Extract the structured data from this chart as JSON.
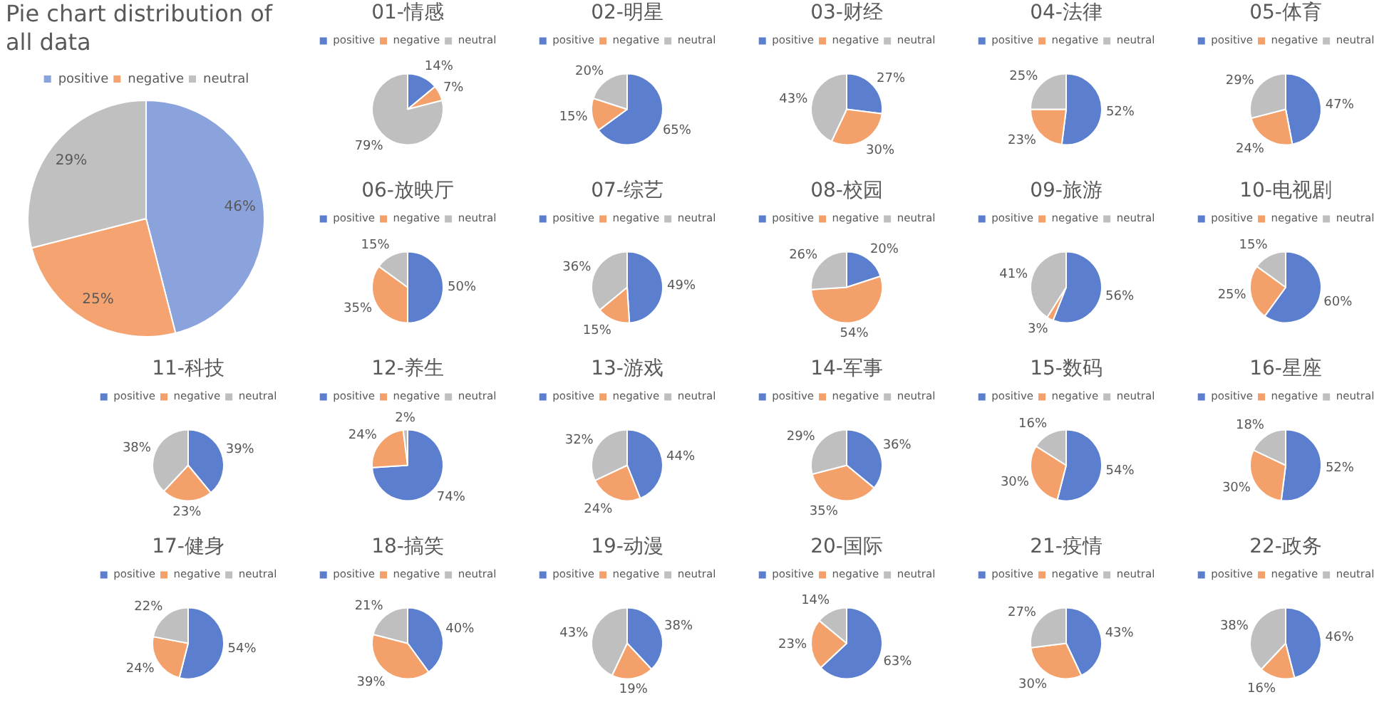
{
  "chart_data": [
    {
      "type": "pie",
      "title": "Pie chart distribution of all data",
      "categories": [
        "positive",
        "negative",
        "neutral"
      ],
      "values": [
        46,
        25,
        29
      ],
      "colors": [
        "#8aa3dd",
        "#f5a370",
        "#c0c0c0"
      ],
      "value_labels": [
        "46%",
        "25%",
        "29%"
      ],
      "legend": "top"
    },
    {
      "type": "pie",
      "title": "01-情感",
      "categories": [
        "positive",
        "negative",
        "neutral"
      ],
      "values": [
        14,
        7,
        79
      ],
      "colors": [
        "#5b7fce",
        "#f4a06b",
        "#bfbfbf"
      ],
      "value_labels": [
        "14%",
        "7%",
        "79%"
      ],
      "legend": "top"
    },
    {
      "type": "pie",
      "title": "02-明星",
      "categories": [
        "positive",
        "negative",
        "neutral"
      ],
      "values": [
        65,
        15,
        20
      ],
      "colors": [
        "#5b7fce",
        "#f4a06b",
        "#bfbfbf"
      ],
      "value_labels": [
        "65%",
        "15%",
        "20%"
      ],
      "legend": "top"
    },
    {
      "type": "pie",
      "title": "03-财经",
      "categories": [
        "positive",
        "negative",
        "neutral"
      ],
      "values": [
        27,
        30,
        43
      ],
      "colors": [
        "#5b7fce",
        "#f4a06b",
        "#bfbfbf"
      ],
      "value_labels": [
        "27%",
        "30%",
        "43%"
      ],
      "legend": "top"
    },
    {
      "type": "pie",
      "title": "04-法律",
      "categories": [
        "positive",
        "negative",
        "neutral"
      ],
      "values": [
        52,
        23,
        25
      ],
      "colors": [
        "#5b7fce",
        "#f4a06b",
        "#bfbfbf"
      ],
      "value_labels": [
        "52%",
        "23%",
        "25%"
      ],
      "legend": "top"
    },
    {
      "type": "pie",
      "title": "05-体育",
      "categories": [
        "positive",
        "negative",
        "neutral"
      ],
      "values": [
        47,
        24,
        29
      ],
      "colors": [
        "#5b7fce",
        "#f4a06b",
        "#bfbfbf"
      ],
      "value_labels": [
        "47%",
        "24%",
        "29%"
      ],
      "legend": "top"
    },
    {
      "type": "pie",
      "title": "06-放映厅",
      "categories": [
        "positive",
        "negative",
        "neutral"
      ],
      "values": [
        50,
        35,
        15
      ],
      "colors": [
        "#5b7fce",
        "#f4a06b",
        "#bfbfbf"
      ],
      "value_labels": [
        "50%",
        "35%",
        "15%"
      ],
      "legend": "top"
    },
    {
      "type": "pie",
      "title": "07-综艺",
      "categories": [
        "positive",
        "negative",
        "neutral"
      ],
      "values": [
        49,
        15,
        36
      ],
      "colors": [
        "#5b7fce",
        "#f4a06b",
        "#bfbfbf"
      ],
      "value_labels": [
        "49%",
        "15%",
        "36%"
      ],
      "legend": "top"
    },
    {
      "type": "pie",
      "title": "08-校园",
      "categories": [
        "positive",
        "negative",
        "neutral"
      ],
      "values": [
        20,
        54,
        26
      ],
      "colors": [
        "#5b7fce",
        "#f4a06b",
        "#bfbfbf"
      ],
      "value_labels": [
        "20%",
        "54%",
        "26%"
      ],
      "legend": "top"
    },
    {
      "type": "pie",
      "title": "09-旅游",
      "categories": [
        "positive",
        "negative",
        "neutral"
      ],
      "values": [
        56,
        3,
        41
      ],
      "colors": [
        "#5b7fce",
        "#f4a06b",
        "#bfbfbf"
      ],
      "value_labels": [
        "56%",
        "3%",
        "41%"
      ],
      "legend": "top"
    },
    {
      "type": "pie",
      "title": "10-电视剧",
      "categories": [
        "positive",
        "negative",
        "neutral"
      ],
      "values": [
        60,
        25,
        15
      ],
      "colors": [
        "#5b7fce",
        "#f4a06b",
        "#bfbfbf"
      ],
      "value_labels": [
        "60%",
        "25%",
        "15%"
      ],
      "legend": "top"
    },
    {
      "type": "pie",
      "title": "11-科技",
      "categories": [
        "positive",
        "negative",
        "neutral"
      ],
      "values": [
        39,
        23,
        38
      ],
      "colors": [
        "#5b7fce",
        "#f4a06b",
        "#bfbfbf"
      ],
      "value_labels": [
        "39%",
        "23%",
        "38%"
      ],
      "legend": "top"
    },
    {
      "type": "pie",
      "title": "12-养生",
      "categories": [
        "positive",
        "negative",
        "neutral"
      ],
      "values": [
        74,
        24,
        2
      ],
      "colors": [
        "#5b7fce",
        "#f4a06b",
        "#bfbfbf"
      ],
      "value_labels": [
        "74%",
        "24%",
        "2%"
      ],
      "legend": "top"
    },
    {
      "type": "pie",
      "title": "13-游戏",
      "categories": [
        "positive",
        "negative",
        "neutral"
      ],
      "values": [
        44,
        24,
        32
      ],
      "colors": [
        "#5b7fce",
        "#f4a06b",
        "#bfbfbf"
      ],
      "value_labels": [
        "44%",
        "24%",
        "32%"
      ],
      "legend": "top"
    },
    {
      "type": "pie",
      "title": "14-军事",
      "categories": [
        "positive",
        "negative",
        "neutral"
      ],
      "values": [
        36,
        35,
        29
      ],
      "colors": [
        "#5b7fce",
        "#f4a06b",
        "#bfbfbf"
      ],
      "value_labels": [
        "36%",
        "35%",
        "29%"
      ],
      "legend": "top"
    },
    {
      "type": "pie",
      "title": "15-数码",
      "categories": [
        "positive",
        "negative",
        "neutral"
      ],
      "values": [
        54,
        30,
        16
      ],
      "colors": [
        "#5b7fce",
        "#f4a06b",
        "#bfbfbf"
      ],
      "value_labels": [
        "54%",
        "30%",
        "16%"
      ],
      "legend": "top"
    },
    {
      "type": "pie",
      "title": "16-星座",
      "categories": [
        "positive",
        "negative",
        "neutral"
      ],
      "values": [
        52,
        30,
        18
      ],
      "colors": [
        "#5b7fce",
        "#f4a06b",
        "#bfbfbf"
      ],
      "value_labels": [
        "52%",
        "30%",
        "18%"
      ],
      "legend": "top"
    },
    {
      "type": "pie",
      "title": "17-健身",
      "categories": [
        "positive",
        "negative",
        "neutral"
      ],
      "values": [
        54,
        24,
        22
      ],
      "colors": [
        "#5b7fce",
        "#f4a06b",
        "#bfbfbf"
      ],
      "value_labels": [
        "54%",
        "24%",
        "22%"
      ],
      "legend": "top"
    },
    {
      "type": "pie",
      "title": "18-搞笑",
      "categories": [
        "positive",
        "negative",
        "neutral"
      ],
      "values": [
        40,
        39,
        21
      ],
      "colors": [
        "#5b7fce",
        "#f4a06b",
        "#bfbfbf"
      ],
      "value_labels": [
        "40%",
        "39%",
        "21%"
      ],
      "legend": "top"
    },
    {
      "type": "pie",
      "title": "19-动漫",
      "categories": [
        "positive",
        "negative",
        "neutral"
      ],
      "values": [
        38,
        19,
        43
      ],
      "colors": [
        "#5b7fce",
        "#f4a06b",
        "#bfbfbf"
      ],
      "value_labels": [
        "38%",
        "19%",
        "43%"
      ],
      "legend": "top"
    },
    {
      "type": "pie",
      "title": "20-国际",
      "categories": [
        "positive",
        "negative",
        "neutral"
      ],
      "values": [
        63,
        23,
        14
      ],
      "colors": [
        "#5b7fce",
        "#f4a06b",
        "#bfbfbf"
      ],
      "value_labels": [
        "63%",
        "23%",
        "14%"
      ],
      "legend": "top"
    },
    {
      "type": "pie",
      "title": "21-疫情",
      "categories": [
        "positive",
        "negative",
        "neutral"
      ],
      "values": [
        43,
        30,
        27
      ],
      "colors": [
        "#5b7fce",
        "#f4a06b",
        "#bfbfbf"
      ],
      "value_labels": [
        "43%",
        "30%",
        "27%"
      ],
      "legend": "top"
    },
    {
      "type": "pie",
      "title": "22-政务",
      "categories": [
        "positive",
        "negative",
        "neutral"
      ],
      "values": [
        46,
        16,
        38
      ],
      "colors": [
        "#5b7fce",
        "#f4a06b",
        "#bfbfbf"
      ],
      "value_labels": [
        "46%",
        "16%",
        "38%"
      ],
      "legend": "top"
    }
  ]
}
